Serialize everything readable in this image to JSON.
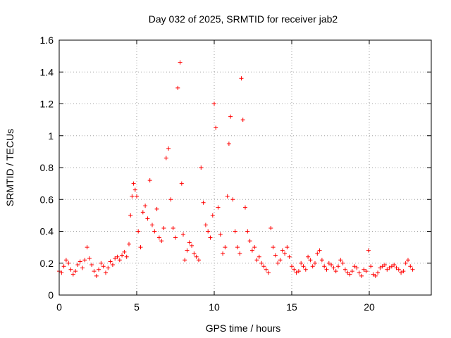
{
  "chart_data": {
    "type": "scatter",
    "title": "Day 032 of 2025, SRMTID for receiver jab2",
    "xlabel": "GPS time / hours",
    "ylabel": "SRMTID / TECUs",
    "xlim": [
      0,
      24
    ],
    "ylim": [
      0,
      1.6
    ],
    "xticks": [
      0,
      5,
      10,
      15,
      20
    ],
    "xtick_labels": [
      "0",
      "5",
      "10",
      "15",
      "20"
    ],
    "yticks": [
      0,
      0.2,
      0.4,
      0.6,
      0.8,
      1.0,
      1.2,
      1.4,
      1.6
    ],
    "ytick_labels": [
      "0",
      "0.2",
      "0.4",
      "0.6",
      "0.8",
      "1",
      "1.2",
      "1.4",
      "1.6"
    ],
    "grid": true,
    "marker": "+",
    "series_color": "#ff0000",
    "series": [
      {
        "name": "SRMTID",
        "x": [
          0.0,
          0.15,
          0.3,
          0.45,
          0.6,
          0.75,
          0.9,
          1.05,
          1.2,
          1.35,
          1.5,
          1.65,
          1.8,
          1.95,
          2.1,
          2.25,
          2.4,
          2.55,
          2.7,
          2.85,
          3.0,
          3.15,
          3.3,
          3.45,
          3.6,
          3.75,
          3.9,
          4.05,
          4.2,
          4.35,
          4.5,
          4.6,
          4.7,
          4.8,
          4.9,
          5.0,
          5.1,
          5.25,
          5.4,
          5.55,
          5.7,
          5.85,
          6.0,
          6.15,
          6.3,
          6.45,
          6.6,
          6.75,
          6.9,
          7.05,
          7.2,
          7.35,
          7.5,
          7.65,
          7.8,
          7.9,
          8.0,
          8.1,
          8.25,
          8.4,
          8.55,
          8.7,
          8.85,
          9.0,
          9.15,
          9.3,
          9.45,
          9.6,
          9.75,
          9.9,
          10.0,
          10.1,
          10.25,
          10.4,
          10.55,
          10.7,
          10.85,
          10.95,
          11.05,
          11.2,
          11.35,
          11.5,
          11.65,
          11.75,
          11.85,
          12.0,
          12.15,
          12.3,
          12.45,
          12.6,
          12.75,
          12.9,
          13.05,
          13.2,
          13.35,
          13.5,
          13.65,
          13.8,
          13.95,
          14.1,
          14.25,
          14.4,
          14.55,
          14.7,
          14.85,
          15.0,
          15.15,
          15.3,
          15.45,
          15.6,
          15.75,
          15.9,
          16.05,
          16.2,
          16.35,
          16.5,
          16.65,
          16.8,
          16.95,
          17.1,
          17.25,
          17.4,
          17.55,
          17.7,
          17.85,
          18.0,
          18.15,
          18.3,
          18.45,
          18.6,
          18.75,
          18.9,
          19.05,
          19.2,
          19.35,
          19.5,
          19.65,
          19.8,
          19.95,
          20.1,
          20.25,
          20.4,
          20.55,
          20.7,
          20.85,
          21.0,
          21.15,
          21.3,
          21.45,
          21.6,
          21.75,
          21.9,
          22.05,
          22.2,
          22.35,
          22.5,
          22.65,
          22.8
        ],
        "y": [
          0.15,
          0.14,
          0.18,
          0.22,
          0.2,
          0.16,
          0.13,
          0.15,
          0.19,
          0.21,
          0.17,
          0.22,
          0.3,
          0.23,
          0.19,
          0.15,
          0.12,
          0.16,
          0.2,
          0.18,
          0.14,
          0.17,
          0.21,
          0.19,
          0.23,
          0.24,
          0.22,
          0.25,
          0.27,
          0.24,
          0.32,
          0.5,
          0.62,
          0.7,
          0.66,
          0.62,
          0.4,
          0.3,
          0.52,
          0.56,
          0.48,
          0.72,
          0.44,
          0.4,
          0.54,
          0.36,
          0.34,
          0.42,
          0.86,
          0.92,
          0.6,
          0.42,
          0.36,
          1.3,
          1.46,
          0.7,
          0.38,
          0.22,
          0.28,
          0.33,
          0.31,
          0.26,
          0.24,
          0.22,
          0.8,
          0.58,
          0.44,
          0.4,
          0.36,
          0.5,
          1.2,
          1.05,
          0.55,
          0.38,
          0.26,
          0.3,
          0.62,
          0.95,
          1.12,
          0.6,
          0.4,
          0.3,
          0.26,
          1.36,
          1.1,
          0.55,
          0.4,
          0.34,
          0.28,
          0.3,
          0.22,
          0.24,
          0.2,
          0.18,
          0.16,
          0.14,
          0.42,
          0.3,
          0.25,
          0.2,
          0.22,
          0.28,
          0.26,
          0.3,
          0.24,
          0.18,
          0.16,
          0.14,
          0.15,
          0.2,
          0.18,
          0.16,
          0.24,
          0.22,
          0.18,
          0.2,
          0.26,
          0.28,
          0.22,
          0.18,
          0.16,
          0.2,
          0.19,
          0.17,
          0.15,
          0.18,
          0.22,
          0.2,
          0.16,
          0.14,
          0.13,
          0.15,
          0.18,
          0.17,
          0.14,
          0.12,
          0.16,
          0.15,
          0.28,
          0.18,
          0.13,
          0.12,
          0.14,
          0.17,
          0.18,
          0.19,
          0.16,
          0.17,
          0.18,
          0.19,
          0.17,
          0.16,
          0.14,
          0.15,
          0.2,
          0.22,
          0.18,
          0.16
        ]
      }
    ]
  }
}
